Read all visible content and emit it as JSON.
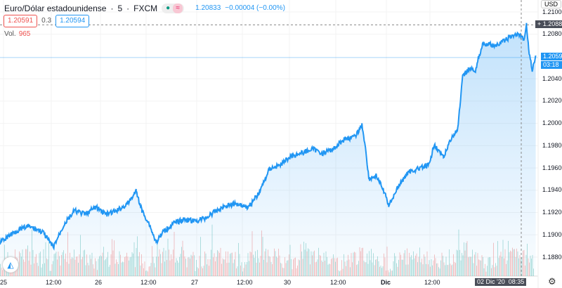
{
  "header": {
    "symbol": "Euro/Dólar estadounidense",
    "interval": "5",
    "exchange": "FXCM",
    "separator": "·",
    "status_dot": "●",
    "status_approx": "≈",
    "last": "1.20833",
    "change": "−0.00004 (−0.00%)"
  },
  "bidask": {
    "bid": "1.20591",
    "spread": "0.3",
    "ask": "1.20594"
  },
  "volume": {
    "label": "Vol.",
    "value": "965"
  },
  "axis": {
    "currency": "USD",
    "price_ticks": [
      "1.21000",
      "1.20800",
      "1.20400",
      "1.20200",
      "1.20000",
      "1.19800",
      "1.19600",
      "1.19400",
      "1.19200",
      "1.19000",
      "1.18800"
    ],
    "crosshair_price": "1.20884",
    "current_price": "1.20591",
    "countdown": "03:18",
    "time_ticks": [
      "25",
      "12:00",
      "26",
      "12:00",
      "27",
      "12:00",
      "30",
      "12:00",
      "Dic",
      "12:00"
    ],
    "crosshair_time": "02 Dic '20",
    "crosshair_clock": "08:35"
  },
  "colors": {
    "line": "#2196f3",
    "up": "#26a69a",
    "down": "#ef5350"
  },
  "chart_data": {
    "type": "area",
    "title": "Euro/Dólar estadounidense · 5 · FXCM",
    "ylim": [
      1.1872,
      1.2103
    ],
    "x": [
      0,
      40,
      80,
      120,
      150,
      180,
      210,
      240,
      270,
      300,
      330,
      360,
      384,
      400,
      420,
      440,
      460,
      490,
      520,
      550,
      580,
      610,
      640,
      670,
      700,
      730,
      760,
      790,
      820,
      850,
      880,
      910,
      940,
      970,
      1000,
      1020,
      1030,
      1040,
      1060,
      1080,
      1096,
      1120,
      1150,
      1180,
      1210,
      1224,
      1250,
      1270,
      1290,
      1304,
      1320,
      1340,
      1360,
      1400,
      1430,
      1460,
      1476,
      1484,
      1490,
      1500,
      1510
    ],
    "y": [
      1.18932,
      1.19027,
      1.19077,
      1.19027,
      1.18888,
      1.1909,
      1.19216,
      1.19184,
      1.19248,
      1.19184,
      1.19216,
      1.19279,
      1.19393,
      1.19216,
      1.19103,
      1.18932,
      1.19027,
      1.19103,
      1.1914,
      1.19121,
      1.19153,
      1.19216,
      1.19266,
      1.19279,
      1.19248,
      1.19374,
      1.19594,
      1.19626,
      1.19708,
      1.19733,
      1.19771,
      1.19733,
      1.19771,
      1.19859,
      1.19878,
      1.19985,
      1.19783,
      1.195,
      1.19531,
      1.19405,
      1.19266,
      1.19418,
      1.19563,
      1.19594,
      1.19626,
      1.19815,
      1.19689,
      1.19859,
      1.19941,
      1.20414,
      1.20489,
      1.20477,
      1.20716,
      1.20697,
      1.2076,
      1.20805,
      1.20748,
      1.20887,
      1.20666,
      1.20477,
      1.20603
    ]
  }
}
